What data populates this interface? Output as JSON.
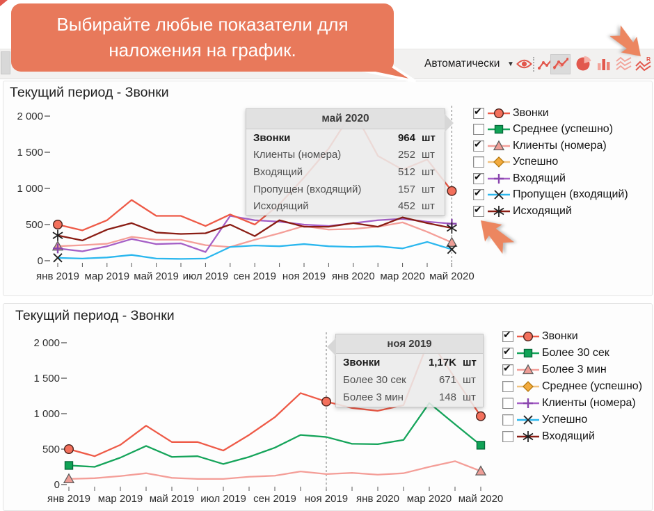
{
  "ui": {
    "check_glyph": "✔"
  },
  "accent_color": "#E8795B",
  "callout": {
    "text": "Выбирайте любые показатели для наложения на график."
  },
  "toolbar": {
    "mode_label": "Автоматически",
    "caret": "▼",
    "icons": [
      "eye-icon",
      "line-chart-icon",
      "multi-line-chart-icon",
      "pie-chart-icon",
      "bar-chart-icon",
      "stacked-lines-icon",
      "regression-lines-icon"
    ],
    "selected_icon": "multi-line-chart-icon"
  },
  "charts": [
    {
      "title": "Текущий период - Звонки",
      "y_tick_labels": [
        "0",
        "500",
        "1 000",
        "1 500",
        "2 000"
      ],
      "x_tick_labels": [
        "янв 2019",
        "мар 2019",
        "май 2019",
        "июл 2019",
        "сен 2019",
        "ноя 2019",
        "янв 2020",
        "мар 2020",
        "май 2020"
      ],
      "legend": [
        {
          "label": "Звонки",
          "checked": true,
          "marker": "circle",
          "color": "#EE5A47",
          "fill": "#F3705C"
        },
        {
          "label": "Среднее (успешно)",
          "checked": false,
          "marker": "square",
          "color": "#15A45A",
          "fill": "#10A356"
        },
        {
          "label": "Клиенты (номера)",
          "checked": true,
          "marker": "triangle",
          "color": "#F49E98",
          "fill": "#EE9D96"
        },
        {
          "label": "Успешно",
          "checked": false,
          "marker": "diamond",
          "color": "#F2C27E",
          "fill": "#F2AA3D"
        },
        {
          "label": "Входящий",
          "checked": true,
          "marker": "plus",
          "color": "#A55FC6",
          "fill": "#A55FC6"
        },
        {
          "label": "Пропущен (входящий)",
          "checked": true,
          "marker": "x",
          "color": "#2BB7EE",
          "fill": "#2BB7EE"
        },
        {
          "label": "Исходящий",
          "checked": true,
          "marker": "asterisk",
          "color": "#8A1D14",
          "fill": "#8A1D14"
        }
      ],
      "tooltip": {
        "header": "май 2020",
        "rows": [
          {
            "label": "Звонки",
            "value": "964",
            "unit": "шт",
            "bold": true
          },
          {
            "label": "Клиенты (номера)",
            "value": "252",
            "unit": "шт",
            "bold": false
          },
          {
            "label": "Входящий",
            "value": "512",
            "unit": "шт",
            "bold": false
          },
          {
            "label": "Пропущен (входящий)",
            "value": "157",
            "unit": "шт",
            "bold": false
          },
          {
            "label": "Исходящий",
            "value": "452",
            "unit": "шт",
            "bold": false
          }
        ]
      }
    },
    {
      "title": "Текущий период - Звонки",
      "y_tick_labels": [
        "0",
        "500",
        "1 000",
        "1 500",
        "2 000"
      ],
      "x_tick_labels": [
        "янв 2019",
        "мар 2019",
        "май 2019",
        "июл 2019",
        "сен 2019",
        "ноя 2019",
        "янв 2020",
        "мар 2020",
        "май 2020"
      ],
      "legend": [
        {
          "label": "Звонки",
          "checked": true,
          "marker": "circle",
          "color": "#EE5A47",
          "fill": "#F3705C"
        },
        {
          "label": "Более 30 сек",
          "checked": true,
          "marker": "square",
          "color": "#15A45A",
          "fill": "#10A356"
        },
        {
          "label": "Более 3 мин",
          "checked": true,
          "marker": "triangle",
          "color": "#F49E98",
          "fill": "#EE9D96"
        },
        {
          "label": "Среднее (успешно)",
          "checked": false,
          "marker": "diamond",
          "color": "#F2C27E",
          "fill": "#F2AA3D"
        },
        {
          "label": "Клиенты (номера)",
          "checked": false,
          "marker": "plus",
          "color": "#A55FC6",
          "fill": "#A55FC6"
        },
        {
          "label": "Успешно",
          "checked": false,
          "marker": "x",
          "color": "#2BB7EE",
          "fill": "#2BB7EE"
        },
        {
          "label": "Входящий",
          "checked": false,
          "marker": "asterisk",
          "color": "#8A1D14",
          "fill": "#8A1D14"
        }
      ],
      "tooltip": {
        "header": "ноя 2019",
        "rows": [
          {
            "label": "Звонки",
            "value": "1,17K",
            "unit": "шт",
            "bold": true
          },
          {
            "label": "Более 30 сек",
            "value": "671",
            "unit": "шт",
            "bold": false
          },
          {
            "label": "Более 3 мин",
            "value": "148",
            "unit": "шт",
            "bold": false
          }
        ]
      }
    }
  ],
  "chart_data": [
    {
      "type": "line",
      "title": "Текущий период - Звонки",
      "x": [
        "янв 2019",
        "фев 2019",
        "мар 2019",
        "апр 2019",
        "май 2019",
        "июн 2019",
        "июл 2019",
        "авг 2019",
        "сен 2019",
        "окт 2019",
        "ноя 2019",
        "дек 2019",
        "янв 2020",
        "фев 2020",
        "мар 2020",
        "апр 2020",
        "май 2020"
      ],
      "ylim": [
        0,
        2000
      ],
      "y_ticks": [
        0,
        500,
        1000,
        1500,
        2000
      ],
      "dashed_x": "май 2020",
      "dashed_index": 16,
      "legend_position": "right",
      "series": [
        {
          "name": "Клиенты (номера)",
          "color": "#F49E98",
          "marker": "triangle",
          "fill": "#EE9D96",
          "marker_at": [
            0,
            16
          ],
          "values": [
            200,
            215,
            235,
            330,
            290,
            290,
            215,
            190,
            290,
            380,
            480,
            430,
            440,
            470,
            530,
            400,
            252
          ]
        },
        {
          "name": "Входящий",
          "color": "#A55FC6",
          "marker": "plus",
          "fill": "#A55FC6",
          "marker_at": [
            0,
            16
          ],
          "values": [
            170,
            130,
            200,
            300,
            230,
            240,
            120,
            620,
            560,
            540,
            500,
            480,
            520,
            560,
            580,
            540,
            512
          ]
        },
        {
          "name": "Пропущен (входящий)",
          "color": "#2BB7EE",
          "marker": "x",
          "fill": "#2BB7EE",
          "marker_at": [
            0,
            16
          ],
          "values": [
            40,
            30,
            45,
            80,
            30,
            25,
            30,
            190,
            210,
            200,
            230,
            200,
            190,
            200,
            170,
            260,
            157
          ]
        },
        {
          "name": "Исходящий",
          "color": "#8A1D14",
          "marker": "asterisk",
          "fill": "#8A1D14",
          "marker_at": [
            0,
            16
          ],
          "values": [
            350,
            280,
            430,
            520,
            390,
            370,
            380,
            500,
            340,
            560,
            470,
            470,
            520,
            470,
            600,
            520,
            452
          ]
        },
        {
          "name": "Звонки",
          "color": "#EE5A47",
          "marker": "circle",
          "fill": "#F3705C",
          "marker_at": [
            0,
            16
          ],
          "values": [
            500,
            420,
            560,
            840,
            620,
            620,
            480,
            640,
            500,
            780,
            1150,
            1550,
            2080,
            1450,
            1260,
            1400,
            964
          ]
        }
      ]
    },
    {
      "type": "line",
      "title": "Текущий период - Звонки",
      "x": [
        "янв 2019",
        "фев 2019",
        "мар 2019",
        "апр 2019",
        "май 2019",
        "июн 2019",
        "июл 2019",
        "авг 2019",
        "сен 2019",
        "окт 2019",
        "ноя 2019",
        "дек 2019",
        "янв 2020",
        "фев 2020",
        "мар 2020",
        "апр 2020",
        "май 2020"
      ],
      "ylim": [
        0,
        2000
      ],
      "y_ticks": [
        0,
        500,
        1000,
        1500,
        2000
      ],
      "dashed_x": "ноя 2019",
      "dashed_index": 10,
      "legend_position": "right",
      "series": [
        {
          "name": "Более 3 мин",
          "color": "#F49E98",
          "marker": "triangle",
          "fill": "#EE9D96",
          "marker_at": [
            0,
            16
          ],
          "values": [
            80,
            90,
            120,
            160,
            95,
            80,
            80,
            110,
            125,
            185,
            148,
            165,
            140,
            160,
            250,
            330,
            190
          ]
        },
        {
          "name": "Более 30 сек",
          "color": "#15A45A",
          "marker": "square",
          "fill": "#10A356",
          "marker_at": [
            0,
            16
          ],
          "values": [
            270,
            250,
            380,
            545,
            390,
            400,
            290,
            390,
            520,
            700,
            671,
            575,
            570,
            630,
            1150,
            850,
            555
          ]
        },
        {
          "name": "Звонки",
          "color": "#EE5A47",
          "marker": "circle",
          "fill": "#F3705C",
          "marker_at": [
            0,
            10,
            16
          ],
          "values": [
            500,
            400,
            560,
            830,
            600,
            600,
            480,
            700,
            950,
            1290,
            1170,
            1080,
            1040,
            1120,
            2050,
            1500,
            964
          ]
        }
      ]
    }
  ]
}
